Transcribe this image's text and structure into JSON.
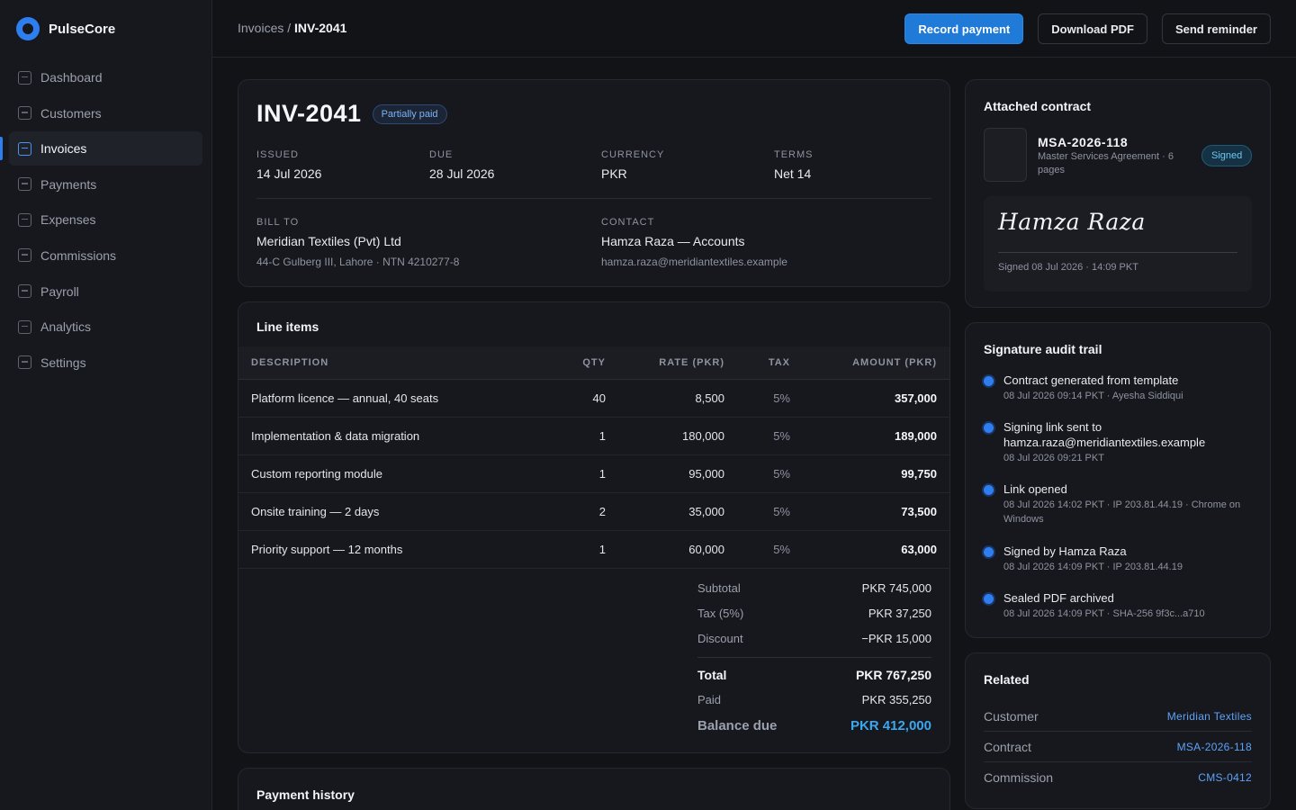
{
  "app": {
    "name": "PulseCore"
  },
  "sidebar": {
    "items": [
      {
        "label": "Dashboard"
      },
      {
        "label": "Customers"
      },
      {
        "label": "Invoices",
        "active": true
      },
      {
        "label": "Payments"
      },
      {
        "label": "Expenses"
      },
      {
        "label": "Commissions"
      },
      {
        "label": "Payroll"
      },
      {
        "label": "Analytics"
      },
      {
        "label": "Settings"
      }
    ]
  },
  "breadcrumb": {
    "parent": "Invoices",
    "separator": " / ",
    "current": "INV-2041"
  },
  "actions": {
    "record_payment": "Record payment",
    "download_pdf": "Download PDF",
    "send_reminder": "Send reminder"
  },
  "invoice": {
    "number": "INV-2041",
    "status": "Partially paid",
    "issued_label": "ISSUED",
    "issued": "14 Jul 2026",
    "due_label": "DUE",
    "due": "28 Jul 2026",
    "currency_label": "CURRENCY",
    "currency": "PKR",
    "terms_label": "TERMS",
    "terms": "Net 14",
    "bill_to_label": "BILL TO",
    "bill_to_name": "Meridian Textiles (Pvt) Ltd",
    "bill_to_address": "44-C Gulberg III, Lahore · NTN 4210277-8",
    "contact_label": "CONTACT",
    "contact_name": "Hamza Raza — Accounts",
    "contact_email": "hamza.raza@meridiantextiles.example"
  },
  "line_items": {
    "title": "Line items",
    "columns": [
      "DESCRIPTION",
      "QTY",
      "RATE (PKR)",
      "TAX",
      "AMOUNT (PKR)"
    ],
    "rows": [
      {
        "description": "Platform licence — annual, 40 seats",
        "qty": "40",
        "rate": "8,500",
        "tax": "5%",
        "amount": "357,000"
      },
      {
        "description": "Implementation & data migration",
        "qty": "1",
        "rate": "180,000",
        "tax": "5%",
        "amount": "189,000"
      },
      {
        "description": "Custom reporting module",
        "qty": "1",
        "rate": "95,000",
        "tax": "5%",
        "amount": "99,750"
      },
      {
        "description": "Onsite training — 2 days",
        "qty": "2",
        "rate": "35,000",
        "tax": "5%",
        "amount": "73,500"
      },
      {
        "description": "Priority support — 12 months",
        "qty": "1",
        "rate": "60,000",
        "tax": "5%",
        "amount": "63,000"
      }
    ]
  },
  "totals": {
    "subtotal_label": "Subtotal",
    "subtotal": "PKR 745,000",
    "tax_label": "Tax (5%)",
    "tax": "PKR 37,250",
    "discount_label": "Discount",
    "discount": "−PKR 15,000",
    "total_label": "Total",
    "total": "PKR 767,250",
    "paid_label": "Paid",
    "paid": "PKR 355,250",
    "balance_label": "Balance due",
    "balance": "PKR 412,000"
  },
  "payment_history": {
    "title": "Payment history"
  },
  "contract": {
    "title": "Attached contract",
    "id": "MSA-2026-118",
    "description": "Master Services Agreement · 6 pages",
    "status": "Signed",
    "signature": "Hamza Raza",
    "signed_meta": "Signed 08 Jul 2026 · 14:09 PKT"
  },
  "audit": {
    "title": "Signature audit trail",
    "events": [
      {
        "title": "Contract generated from template",
        "meta": "08 Jul 2026 09:14 PKT · Ayesha Siddiqui"
      },
      {
        "title": "Signing link sent to hamza.raza@meridiantextiles.example",
        "meta": "08 Jul 2026 09:21 PKT"
      },
      {
        "title": "Link opened",
        "meta": "08 Jul 2026 14:02 PKT · IP 203.81.44.19 · Chrome on Windows"
      },
      {
        "title": "Signed by Hamza Raza",
        "meta": "08 Jul 2026 14:09 PKT · IP 203.81.44.19"
      },
      {
        "title": "Sealed PDF archived",
        "meta": "08 Jul 2026 14:09 PKT · SHA-256 9f3c...a710"
      }
    ]
  },
  "related": {
    "title": "Related",
    "items": [
      {
        "label": "Customer",
        "value": "Meridian Textiles"
      },
      {
        "label": "Contract",
        "value": "MSA-2026-118"
      },
      {
        "label": "Commission",
        "value": "CMS-0412"
      }
    ]
  },
  "colors": {
    "accent": "#2f7ef0",
    "balance": "#3aa8f0",
    "signed": "#6fc7f0",
    "link": "#5ea2f5"
  }
}
